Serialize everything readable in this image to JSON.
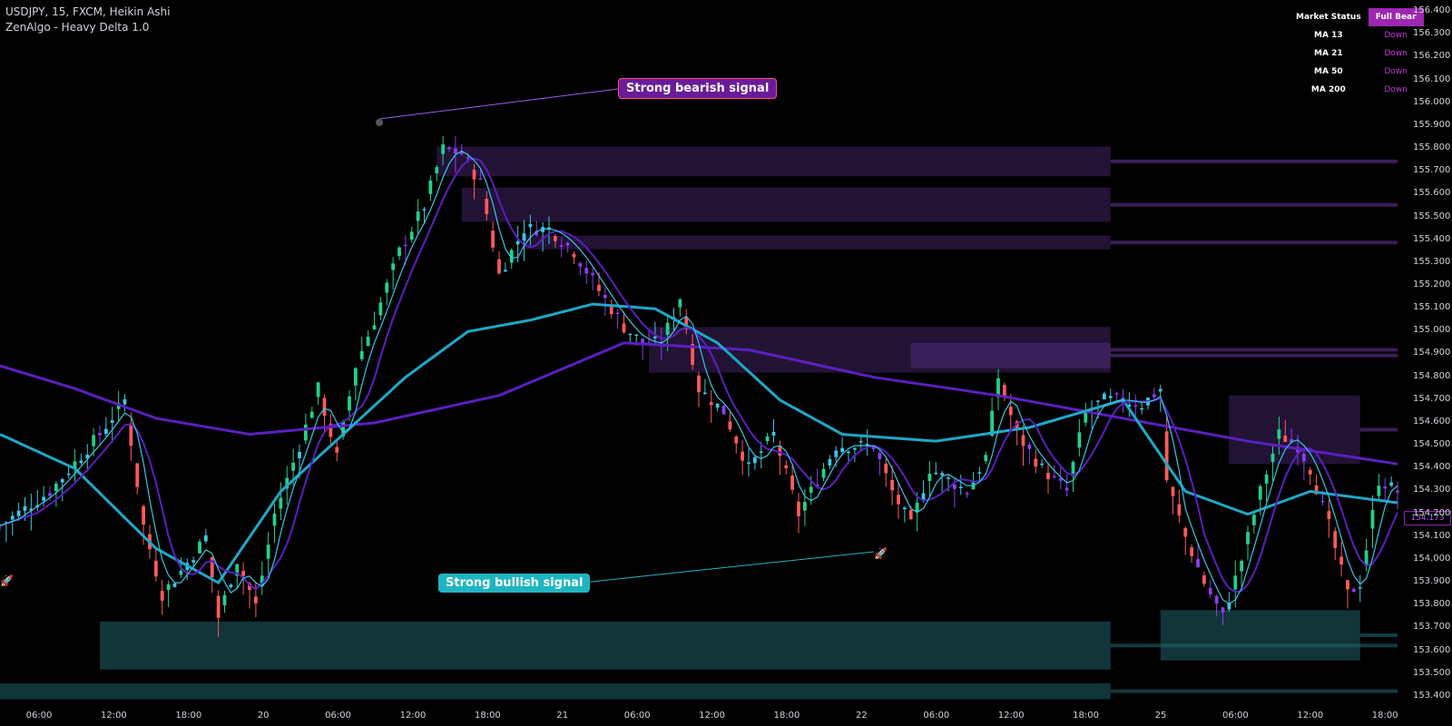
{
  "header": {
    "symbol_line": "USDJPY, 15, FXCM, Heikin Ashi",
    "indicator_line": "ZenAlgo - Heavy Delta 1.0"
  },
  "status_table": {
    "market_status_label": "Market Status",
    "market_status_value": "Full Bear",
    "rows": [
      {
        "label": "MA 13",
        "value": "Down"
      },
      {
        "label": "MA 21",
        "value": "Down"
      },
      {
        "label": "MA 50",
        "value": "Down"
      },
      {
        "label": "MA 200",
        "value": "Down"
      }
    ]
  },
  "callouts": {
    "bearish": "Strong bearish signal",
    "bullish": "Strong bullish signal"
  },
  "chart_data": {
    "type": "candlestick",
    "symbol": "USDJPY",
    "timeframe": "15",
    "y_ticks": [
      156.4,
      156.3,
      156.2,
      156.1,
      156.0,
      155.9,
      155.8,
      155.7,
      155.6,
      155.5,
      155.4,
      155.3,
      155.2,
      155.1,
      155.0,
      154.9,
      154.8,
      154.7,
      154.6,
      154.5,
      154.4,
      154.3,
      154.2,
      154.1,
      154.0,
      153.9,
      153.8,
      153.7,
      153.6,
      153.5,
      153.4
    ],
    "ylim": [
      153.36,
      156.42
    ],
    "x_ticks": [
      "06:00",
      "12:00",
      "18:00",
      "20",
      "06:00",
      "12:00",
      "18:00",
      "21",
      "06:00",
      "12:00",
      "18:00",
      "22",
      "06:00",
      "12:00",
      "18:00",
      "25",
      "06:00",
      "12:00",
      "18:00"
    ],
    "last_price": "154.173",
    "colors": {
      "bull_body": "#3cc7e0",
      "bear_body": "#8b3df0",
      "strong_bull": "#22d18b",
      "strong_bear": "#ff5a5a",
      "ma_fast": "#35c7e4",
      "ma_slow": "#1ea8c8",
      "ma_200": "#5b1fc0",
      "supply_zone": "#7a45c0",
      "demand_zone": "#1f6068"
    },
    "price_path": [
      [
        0,
        154.15
      ],
      [
        8,
        154.3
      ],
      [
        16,
        154.55
      ],
      [
        20,
        154.7
      ],
      [
        23,
        154.15
      ],
      [
        26,
        153.85
      ],
      [
        29,
        153.95
      ],
      [
        33,
        154.1
      ],
      [
        35,
        153.75
      ],
      [
        38,
        154.0
      ],
      [
        41,
        153.8
      ],
      [
        44,
        154.2
      ],
      [
        48,
        154.5
      ],
      [
        51,
        154.75
      ],
      [
        54,
        154.45
      ],
      [
        57,
        154.85
      ],
      [
        60,
        155.05
      ],
      [
        64,
        155.35
      ],
      [
        68,
        155.55
      ],
      [
        71,
        155.8
      ],
      [
        74,
        155.78
      ],
      [
        77,
        155.65
      ],
      [
        80,
        155.25
      ],
      [
        84,
        155.45
      ],
      [
        88,
        155.45
      ],
      [
        92,
        155.35
      ],
      [
        96,
        155.18
      ],
      [
        100,
        155.02
      ],
      [
        103,
        154.95
      ],
      [
        106,
        154.95
      ],
      [
        109,
        155.15
      ],
      [
        112,
        154.75
      ],
      [
        116,
        154.65
      ],
      [
        120,
        154.4
      ],
      [
        124,
        154.55
      ],
      [
        128,
        154.2
      ],
      [
        131,
        154.35
      ],
      [
        134,
        154.5
      ],
      [
        137,
        154.5
      ],
      [
        140,
        154.5
      ],
      [
        143,
        154.3
      ],
      [
        146,
        154.15
      ],
      [
        149,
        154.4
      ],
      [
        152,
        154.35
      ],
      [
        155,
        154.3
      ],
      [
        158,
        154.45
      ],
      [
        160,
        154.8
      ],
      [
        163,
        154.55
      ],
      [
        167,
        154.4
      ],
      [
        171,
        154.3
      ],
      [
        174,
        154.65
      ],
      [
        177,
        154.7
      ],
      [
        180,
        154.7
      ],
      [
        183,
        154.68
      ],
      [
        186,
        154.75
      ],
      [
        187,
        154.35
      ],
      [
        190,
        154.1
      ],
      [
        193,
        153.9
      ],
      [
        196,
        153.75
      ],
      [
        199,
        154.0
      ],
      [
        202,
        154.3
      ],
      [
        205,
        154.55
      ],
      [
        208,
        154.5
      ],
      [
        210,
        154.4
      ],
      [
        213,
        154.15
      ],
      [
        216,
        153.85
      ],
      [
        218,
        153.9
      ],
      [
        221,
        154.35
      ],
      [
        224,
        154.3
      ]
    ],
    "ma_200": [
      [
        0,
        154.85
      ],
      [
        12,
        154.75
      ],
      [
        25,
        154.62
      ],
      [
        40,
        154.55
      ],
      [
        60,
        154.6
      ],
      [
        80,
        154.72
      ],
      [
        100,
        154.95
      ],
      [
        120,
        154.92
      ],
      [
        140,
        154.8
      ],
      [
        160,
        154.72
      ],
      [
        180,
        154.62
      ],
      [
        200,
        154.52
      ],
      [
        224,
        154.42
      ]
    ],
    "ma_50": [
      [
        0,
        154.55
      ],
      [
        12,
        154.4
      ],
      [
        25,
        154.05
      ],
      [
        35,
        153.9
      ],
      [
        45,
        154.3
      ],
      [
        55,
        154.55
      ],
      [
        65,
        154.8
      ],
      [
        75,
        155.0
      ],
      [
        85,
        155.05
      ],
      [
        95,
        155.12
      ],
      [
        105,
        155.1
      ],
      [
        115,
        154.95
      ],
      [
        125,
        154.7
      ],
      [
        135,
        154.55
      ],
      [
        150,
        154.52
      ],
      [
        165,
        154.58
      ],
      [
        180,
        154.7
      ],
      [
        190,
        154.3
      ],
      [
        200,
        154.2
      ],
      [
        210,
        154.3
      ],
      [
        224,
        154.25
      ]
    ],
    "supply_zones": [
      {
        "top": 155.81,
        "bottom": 155.68,
        "from": 70,
        "to": 178
      },
      {
        "top": 155.63,
        "bottom": 155.48,
        "from": 74,
        "to": 178
      },
      {
        "top": 155.42,
        "bottom": 155.36,
        "from": 84,
        "to": 178
      },
      {
        "top": 155.02,
        "bottom": 154.82,
        "from": 104,
        "to": 178
      },
      {
        "top": 154.95,
        "bottom": 154.84,
        "from": 146,
        "to": 178
      },
      {
        "top": 154.72,
        "bottom": 154.42,
        "from": 197,
        "to": 218
      }
    ],
    "demand_zones": [
      {
        "top": 153.73,
        "bottom": 153.52,
        "from": 16,
        "to": 178
      },
      {
        "top": 153.46,
        "bottom": 153.39,
        "from": 0,
        "to": 178
      },
      {
        "top": 153.78,
        "bottom": 153.56,
        "from": 186,
        "to": 218
      }
    ]
  }
}
